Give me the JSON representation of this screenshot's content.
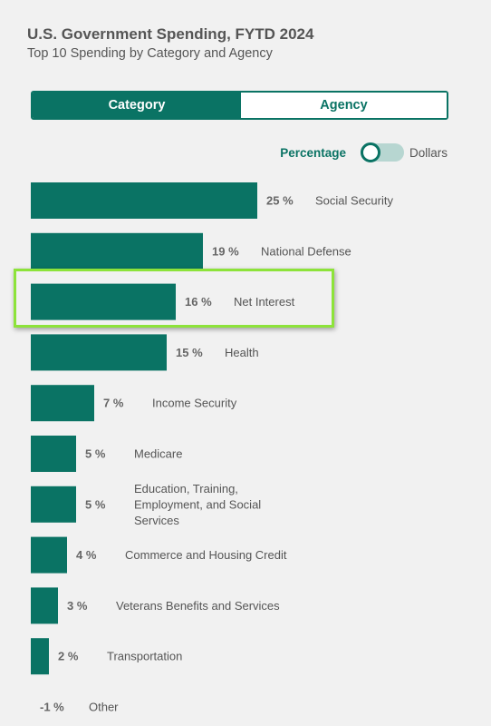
{
  "header": {
    "title": "U.S. Government Spending, FYTD 2024",
    "subtitle": "Top 10 Spending by Category and Agency"
  },
  "view_toggle": {
    "options": [
      "Category",
      "Agency"
    ],
    "selected": "Category"
  },
  "unit_toggle": {
    "left_label": "Percentage",
    "right_label": "Dollars",
    "selected": "Percentage"
  },
  "colors": {
    "accent": "#0a7364",
    "highlight": "#8de33a"
  },
  "highlighted_item": "Net Interest",
  "chart_data": {
    "type": "bar",
    "orientation": "horizontal",
    "categories": [
      "Social Security",
      "National Defense",
      "Net Interest",
      "Health",
      "Income Security",
      "Medicare",
      "Education, Training, Employment, and Social Services",
      "Commerce and Housing Credit",
      "Veterans Benefits and Services",
      "Transportation",
      "Other"
    ],
    "label_lines": [
      [
        "Social Security"
      ],
      [
        "National Defense"
      ],
      [
        "Net Interest"
      ],
      [
        "Health"
      ],
      [
        "Income Security"
      ],
      [
        "Medicare"
      ],
      [
        "Education, Training,",
        "Employment, and Social",
        "Services"
      ],
      [
        "Commerce and Housing Credit"
      ],
      [
        "Veterans Benefits and Services"
      ],
      [
        "Transportation"
      ],
      [
        "Other"
      ]
    ],
    "values": [
      25,
      19,
      16,
      15,
      7,
      5,
      5,
      4,
      3,
      2,
      -1
    ],
    "value_labels": [
      "25 %",
      "19 %",
      "16 %",
      "15 %",
      "7 %",
      "5 %",
      "5 %",
      "4 %",
      "3 %",
      "2 %",
      "-1 %"
    ],
    "unit": "%",
    "xlim": [
      0,
      25
    ],
    "grid": false,
    "legend": "none"
  }
}
